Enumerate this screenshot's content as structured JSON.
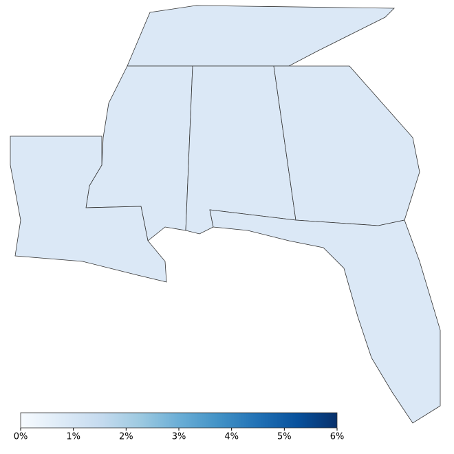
{
  "chart_data": {
    "type": "choropleth",
    "colormap": [
      "#f7fbff",
      "#deebf7",
      "#c6dbef",
      "#9ecae1",
      "#6baed6",
      "#4292c6",
      "#2171b5",
      "#08519c",
      "#08306b"
    ],
    "clim": [
      0,
      6
    ],
    "cticks": [
      {
        "value": 0,
        "label": "0%"
      },
      {
        "value": 1,
        "label": "1%"
      },
      {
        "value": 2,
        "label": "2%"
      },
      {
        "value": 3,
        "label": "3%"
      },
      {
        "value": 4,
        "label": "4%"
      },
      {
        "value": 5,
        "label": "5%"
      },
      {
        "value": 6,
        "label": "6%"
      }
    ]
  }
}
